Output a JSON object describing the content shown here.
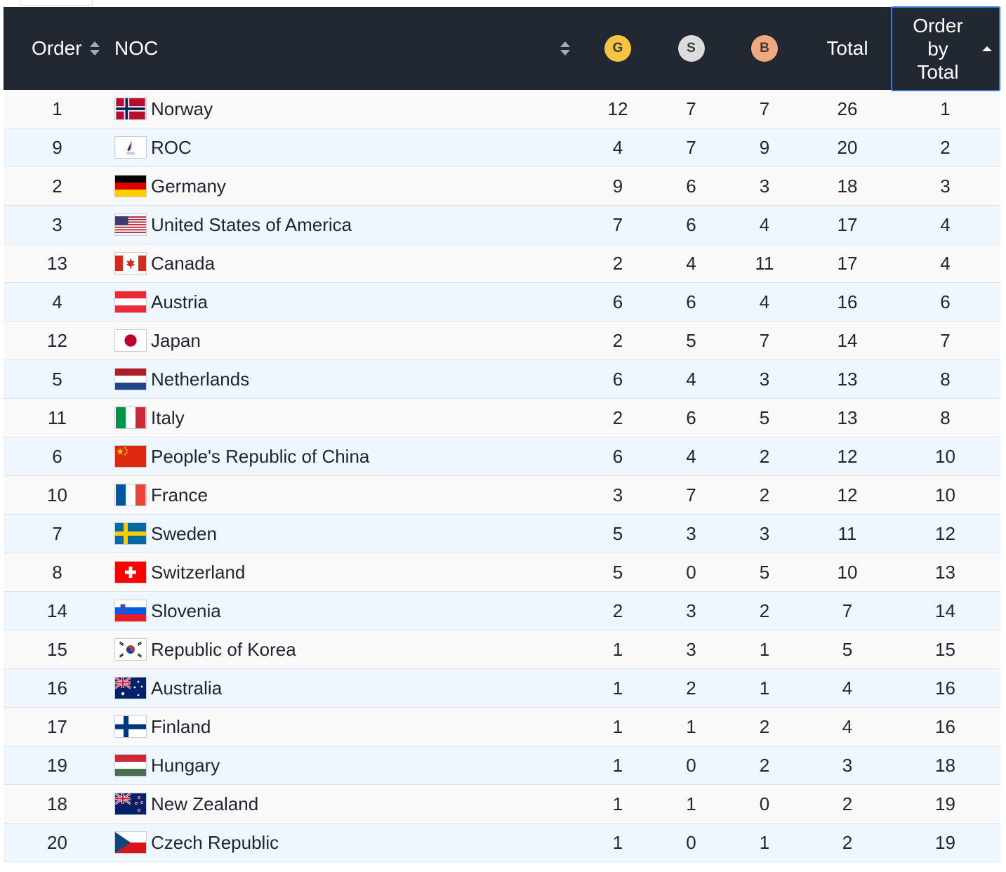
{
  "header": {
    "order": "Order",
    "noc": "NOC",
    "gold": "G",
    "silver": "S",
    "bronze": "B",
    "total": "Total",
    "order_by_total": [
      "Order",
      "by",
      "Total"
    ]
  },
  "rows": [
    {
      "order": "1",
      "noc": "Norway",
      "flag": "norway-flag-icon",
      "g": "12",
      "s": "7",
      "b": "7",
      "total": "26",
      "rank": "1"
    },
    {
      "order": "9",
      "noc": "ROC",
      "flag": "roc-flag-icon",
      "g": "4",
      "s": "7",
      "b": "9",
      "total": "20",
      "rank": "2"
    },
    {
      "order": "2",
      "noc": "Germany",
      "flag": "germany-flag-icon",
      "g": "9",
      "s": "6",
      "b": "3",
      "total": "18",
      "rank": "3"
    },
    {
      "order": "3",
      "noc": "United States of America",
      "flag": "usa-flag-icon",
      "g": "7",
      "s": "6",
      "b": "4",
      "total": "17",
      "rank": "4"
    },
    {
      "order": "13",
      "noc": "Canada",
      "flag": "canada-flag-icon",
      "g": "2",
      "s": "4",
      "b": "11",
      "total": "17",
      "rank": "4"
    },
    {
      "order": "4",
      "noc": "Austria",
      "flag": "austria-flag-icon",
      "g": "6",
      "s": "6",
      "b": "4",
      "total": "16",
      "rank": "6"
    },
    {
      "order": "12",
      "noc": "Japan",
      "flag": "japan-flag-icon",
      "g": "2",
      "s": "5",
      "b": "7",
      "total": "14",
      "rank": "7"
    },
    {
      "order": "5",
      "noc": "Netherlands",
      "flag": "netherlands-flag-icon",
      "g": "6",
      "s": "4",
      "b": "3",
      "total": "13",
      "rank": "8"
    },
    {
      "order": "11",
      "noc": "Italy",
      "flag": "italy-flag-icon",
      "g": "2",
      "s": "6",
      "b": "5",
      "total": "13",
      "rank": "8"
    },
    {
      "order": "6",
      "noc": "People's Republic of China",
      "flag": "china-flag-icon",
      "g": "6",
      "s": "4",
      "b": "2",
      "total": "12",
      "rank": "10"
    },
    {
      "order": "10",
      "noc": "France",
      "flag": "france-flag-icon",
      "g": "3",
      "s": "7",
      "b": "2",
      "total": "12",
      "rank": "10"
    },
    {
      "order": "7",
      "noc": "Sweden",
      "flag": "sweden-flag-icon",
      "g": "5",
      "s": "3",
      "b": "3",
      "total": "11",
      "rank": "12"
    },
    {
      "order": "8",
      "noc": "Switzerland",
      "flag": "switzerland-flag-icon",
      "g": "5",
      "s": "0",
      "b": "5",
      "total": "10",
      "rank": "13"
    },
    {
      "order": "14",
      "noc": "Slovenia",
      "flag": "slovenia-flag-icon",
      "g": "2",
      "s": "3",
      "b": "2",
      "total": "7",
      "rank": "14"
    },
    {
      "order": "15",
      "noc": "Republic of Korea",
      "flag": "korea-flag-icon",
      "g": "1",
      "s": "3",
      "b": "1",
      "total": "5",
      "rank": "15"
    },
    {
      "order": "16",
      "noc": "Australia",
      "flag": "australia-flag-icon",
      "g": "1",
      "s": "2",
      "b": "1",
      "total": "4",
      "rank": "16"
    },
    {
      "order": "17",
      "noc": "Finland",
      "flag": "finland-flag-icon",
      "g": "1",
      "s": "1",
      "b": "2",
      "total": "4",
      "rank": "16"
    },
    {
      "order": "19",
      "noc": "Hungary",
      "flag": "hungary-flag-icon",
      "g": "1",
      "s": "0",
      "b": "2",
      "total": "3",
      "rank": "18"
    },
    {
      "order": "18",
      "noc": "New Zealand",
      "flag": "new-zealand-flag-icon",
      "g": "1",
      "s": "1",
      "b": "0",
      "total": "2",
      "rank": "19"
    },
    {
      "order": "20",
      "noc": "Czech Republic",
      "flag": "czech-flag-icon",
      "g": "1",
      "s": "0",
      "b": "1",
      "total": "2",
      "rank": "19"
    }
  ]
}
